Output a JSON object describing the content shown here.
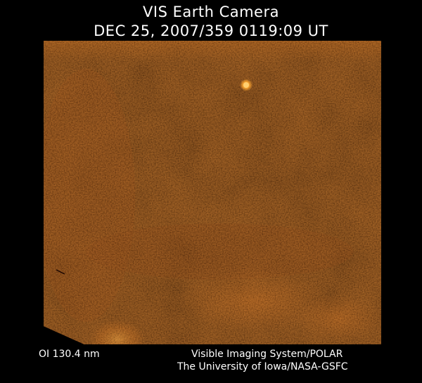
{
  "header": {
    "title": "VIS Earth Camera",
    "timestamp": "DEC 25, 2007/359 0119:09 UT"
  },
  "image": {
    "description_icon": "earth-camera-image",
    "palette": {
      "background": "#000000",
      "dark": "#3a0c00",
      "mid": "#8a3a08",
      "bright": "#e89a3c",
      "hot": "#ffd070"
    }
  },
  "footer": {
    "wavelength": "OI  130.4 nm",
    "credit_line_1": "Visible Imaging System/POLAR",
    "credit_line_2": "The University of Iowa/NASA-GSFC"
  }
}
